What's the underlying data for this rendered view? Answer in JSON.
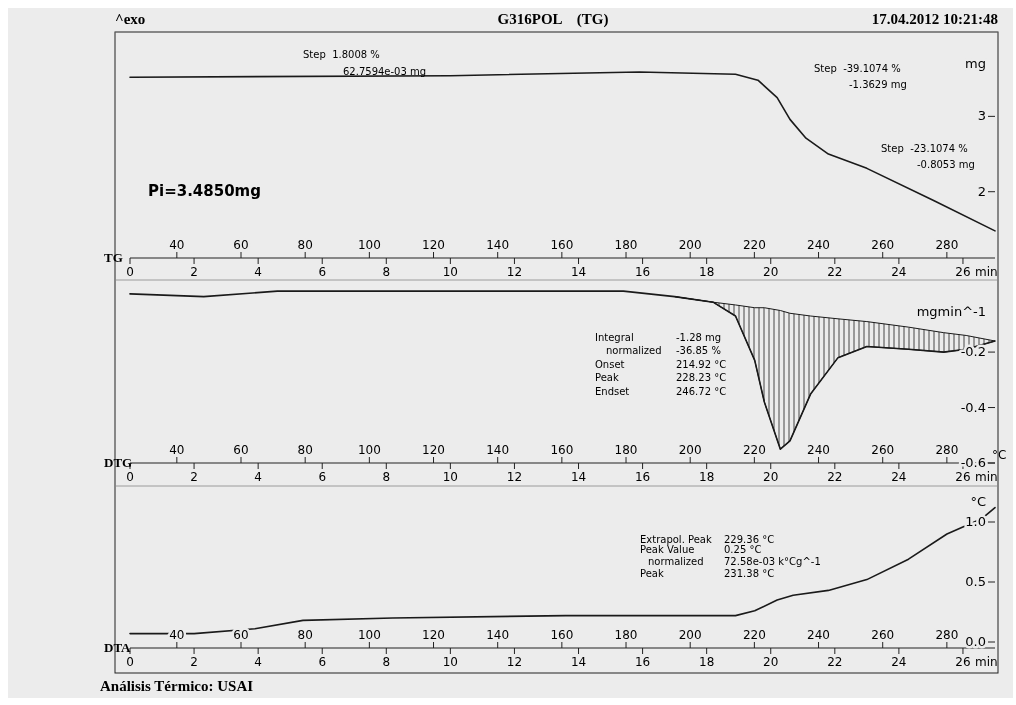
{
  "chart_data": [
    {
      "type": "line",
      "title": "TG",
      "ylabel": "mg",
      "xlabel": "min",
      "xlim": [
        0,
        27
      ],
      "xticks": [
        0,
        2,
        4,
        6,
        8,
        10,
        12,
        14,
        16,
        18,
        20,
        22,
        24,
        26
      ],
      "x2lim": [
        25.4,
        295
      ],
      "x2ticks": [
        40,
        60,
        80,
        100,
        120,
        140,
        160,
        180,
        200,
        220,
        240,
        260,
        280
      ],
      "ylim": [
        1.12,
        4.12
      ],
      "yticks": [
        2,
        3
      ],
      "series": [
        {
          "color": "#1a1a1a",
          "x": [
            0,
            10,
            15.9,
            18.9,
            19.6,
            20.2,
            20.6,
            21.1,
            21.8,
            23.0,
            25.1,
            27.0
          ],
          "values": [
            3.52,
            3.54,
            3.59,
            3.56,
            3.48,
            3.25,
            2.96,
            2.71,
            2.5,
            2.31,
            1.88,
            1.48
          ]
        }
      ],
      "annotations": [
        "^exo",
        "G316POL    (TG)",
        "17.04.2012 10:21:48",
        "Step  1.8008 %",
        "62.7594e-03 mg",
        "Step  -39.1074 %",
        "-1.3629 mg",
        "Step  -23.1074 %",
        "-0.8053 mg",
        "Pi=3.4850mg"
      ]
    },
    {
      "type": "line",
      "title": "DTG",
      "ylabel": "mgmin^-1",
      "xlabel": "min",
      "x2label": "°C",
      "xlim": [
        0,
        27
      ],
      "xticks": [
        0,
        2,
        4,
        6,
        8,
        10,
        12,
        14,
        16,
        18,
        20,
        22,
        24,
        26
      ],
      "x2lim": [
        25.4,
        295
      ],
      "x2ticks": [
        40,
        60,
        80,
        100,
        120,
        140,
        160,
        180,
        200,
        220,
        240,
        260,
        280
      ],
      "ylim": [
        -0.6,
        0.06
      ],
      "yticks": [
        -0.2,
        -0.4,
        -0.6
      ],
      "series": [
        {
          "color": "#1a1a1a",
          "x": [
            0,
            2.3,
            4.6,
            10,
            15.4,
            17,
            18.2,
            18.9,
            19.5,
            19.8,
            20.3,
            20.6,
            21.25,
            22.1,
            23,
            24.3,
            25.4,
            26.1,
            27.0
          ],
          "values": [
            0.01,
            0,
            0.02,
            0.02,
            0.02,
            0,
            -0.02,
            -0.07,
            -0.23,
            -0.38,
            -0.55,
            -0.52,
            -0.35,
            -0.22,
            -0.18,
            -0.19,
            -0.2,
            -0.19,
            -0.16
          ],
          "lower": [
            null,
            null,
            null,
            null,
            null,
            0,
            -0.02,
            -0.07,
            -0.23,
            -0.38,
            -0.55,
            -0.52,
            -0.35,
            -0.22,
            -0.18,
            -0.19,
            -0.2,
            -0.19,
            -0.16
          ],
          "upper": [
            null,
            null,
            null,
            null,
            null,
            0,
            -0.02,
            -0.03,
            -0.04,
            -0.04,
            -0.05,
            -0.06,
            -0.07,
            -0.08,
            -0.09,
            -0.11,
            -0.13,
            -0.14,
            -0.16
          ]
        }
      ],
      "annotations": [
        "Integral",
        "-1.28 mg",
        "normalized",
        "-36.85 %",
        "Onset",
        "214.92 °C",
        "Peak",
        "228.23 °C",
        "Endset",
        "246.72 °C"
      ]
    },
    {
      "type": "line",
      "title": "DTA",
      "ylabel": "°C",
      "xlabel": "min",
      "xlim": [
        0,
        27
      ],
      "xticks": [
        0,
        2,
        4,
        6,
        8,
        10,
        12,
        14,
        16,
        18,
        20,
        22,
        24,
        26
      ],
      "x2lim": [
        25.4,
        295
      ],
      "x2ticks": [
        40,
        60,
        80,
        100,
        120,
        140,
        160,
        180,
        200,
        220,
        240,
        260,
        280
      ],
      "ylim": [
        -0.05,
        1.3
      ],
      "yticks": [
        {
          "value": 0,
          "label": "0.0"
        },
        0.5,
        {
          "value": 1,
          "label": "1.0"
        }
      ],
      "series": [
        {
          "color": "#1a1a1a",
          "x": [
            0,
            2,
            3.9,
            5.4,
            8.2,
            13.6,
            18.9,
            19.5,
            20.2,
            20.7,
            21.8,
            23,
            24.3,
            25.5,
            26.6,
            27.0
          ],
          "values": [
            0.07,
            0.07,
            0.11,
            0.18,
            0.2,
            0.22,
            0.22,
            0.26,
            0.35,
            0.39,
            0.43,
            0.52,
            0.69,
            0.9,
            1.03,
            1.12
          ]
        }
      ],
      "annotations": [
        "Análisis Térmico: USAI",
        "Extrapol. Peak",
        "229.36 °C",
        "Peak Value",
        "0.25 °C",
        "normalized",
        "72.58e-03 k°Cg^-1",
        "Peak",
        "231.38 °C"
      ]
    }
  ]
}
